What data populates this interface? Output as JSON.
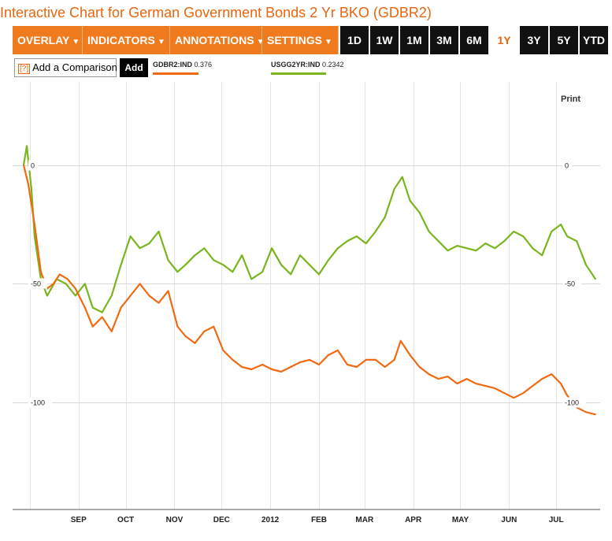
{
  "page": {
    "title": "Interactive Chart for German Government Bonds 2 Yr BKO (GDBR2)"
  },
  "toolbar": {
    "menus": [
      "OVERLAY",
      "INDICATORS",
      "ANNOTATIONS",
      "SETTINGS"
    ],
    "ranges": [
      "1D",
      "1W",
      "1M",
      "3M",
      "6M",
      "1Y",
      "3Y",
      "5Y",
      "YTD"
    ],
    "active_range": "1Y"
  },
  "compare": {
    "help": "[?]",
    "label": "Add a Comparison",
    "add_label": "Add"
  },
  "legend": [
    {
      "ticker": "GDBR2:IND",
      "value": "0.376",
      "color": "#f06a12"
    },
    {
      "ticker": "USGG2YR:IND",
      "value": "0.2342",
      "color": "#7ab51d"
    }
  ],
  "print_label": "Print",
  "chart_data": {
    "type": "line",
    "ylim": [
      -145,
      35
    ],
    "yticks": [
      "0",
      "-50",
      "-100"
    ],
    "xticks": [
      "SEP",
      "OCT",
      "NOV",
      "DEC",
      "2012",
      "FEB",
      "MAR",
      "APR",
      "MAY",
      "JUN",
      "JUL"
    ],
    "grid": true,
    "series": [
      {
        "name": "GDBR2:IND",
        "color": "#f06a12",
        "x": [
          "2011-07-28",
          "2011-07-31",
          "2011-08-04",
          "2011-08-08",
          "2011-08-12",
          "2011-08-16",
          "2011-08-20",
          "2011-08-25",
          "2011-08-30",
          "2011-09-05",
          "2011-09-10",
          "2011-09-16",
          "2011-09-22",
          "2011-09-28",
          "2011-10-04",
          "2011-10-10",
          "2011-10-16",
          "2011-10-22",
          "2011-10-28",
          "2011-11-03",
          "2011-11-08",
          "2011-11-14",
          "2011-11-20",
          "2011-11-26",
          "2011-12-02",
          "2011-12-08",
          "2011-12-14",
          "2011-12-20",
          "2011-12-27",
          "2012-01-02",
          "2012-01-08",
          "2012-01-14",
          "2012-01-20",
          "2012-01-26",
          "2012-02-01",
          "2012-02-07",
          "2012-02-13",
          "2012-02-19",
          "2012-02-25",
          "2012-03-02",
          "2012-03-08",
          "2012-03-14",
          "2012-03-20",
          "2012-03-24",
          "2012-03-30",
          "2012-04-05",
          "2012-04-11",
          "2012-04-17",
          "2012-04-23",
          "2012-04-29",
          "2012-05-05",
          "2012-05-11",
          "2012-05-17",
          "2012-05-23",
          "2012-05-29",
          "2012-06-04",
          "2012-06-10",
          "2012-06-16",
          "2012-06-22",
          "2012-06-28",
          "2012-07-04",
          "2012-07-08",
          "2012-07-14",
          "2012-07-20",
          "2012-07-26"
        ],
        "values": [
          0,
          -8,
          -25,
          -45,
          -52,
          -50,
          -46,
          -48,
          -52,
          -60,
          -68,
          -64,
          -70,
          -60,
          -55,
          -50,
          -55,
          -58,
          -53,
          -68,
          -72,
          -75,
          -70,
          -68,
          -78,
          -82,
          -85,
          -86,
          -84,
          -86,
          -87,
          -85,
          -83,
          -82,
          -84,
          -80,
          -78,
          -84,
          -85,
          -82,
          -82,
          -85,
          -82,
          -74,
          -80,
          -85,
          -88,
          -90,
          -89,
          -92,
          -90,
          -92,
          -93,
          -94,
          -96,
          -98,
          -96,
          -93,
          -90,
          -88,
          -92,
          -97,
          -102,
          -104,
          -105
        ]
      },
      {
        "name": "USGG2YR:IND",
        "color": "#7ab51d",
        "x": [
          "2011-07-28",
          "2011-07-30",
          "2011-08-02",
          "2011-08-04",
          "2011-08-08",
          "2011-08-12",
          "2011-08-18",
          "2011-08-24",
          "2011-08-30",
          "2011-09-05",
          "2011-09-10",
          "2011-09-16",
          "2011-09-22",
          "2011-09-28",
          "2011-10-04",
          "2011-10-10",
          "2011-10-16",
          "2011-10-22",
          "2011-10-28",
          "2011-11-03",
          "2011-11-08",
          "2011-11-14",
          "2011-11-20",
          "2011-11-26",
          "2011-12-02",
          "2011-12-08",
          "2011-12-14",
          "2011-12-20",
          "2011-12-27",
          "2012-01-02",
          "2012-01-08",
          "2012-01-14",
          "2012-01-20",
          "2012-01-26",
          "2012-02-01",
          "2012-02-07",
          "2012-02-13",
          "2012-02-19",
          "2012-02-25",
          "2012-03-02",
          "2012-03-08",
          "2012-03-14",
          "2012-03-20",
          "2012-03-25",
          "2012-03-30",
          "2012-04-05",
          "2012-04-11",
          "2012-04-17",
          "2012-04-23",
          "2012-04-29",
          "2012-05-05",
          "2012-05-11",
          "2012-05-17",
          "2012-05-23",
          "2012-05-29",
          "2012-06-04",
          "2012-06-10",
          "2012-06-16",
          "2012-06-22",
          "2012-06-28",
          "2012-07-04",
          "2012-07-08",
          "2012-07-14",
          "2012-07-20",
          "2012-07-26"
        ],
        "values": [
          0,
          8,
          -10,
          -30,
          -48,
          -55,
          -48,
          -50,
          -55,
          -50,
          -60,
          -62,
          -55,
          -42,
          -30,
          -35,
          -33,
          -28,
          -40,
          -45,
          -42,
          -38,
          -35,
          -40,
          -42,
          -45,
          -38,
          -48,
          -45,
          -35,
          -42,
          -46,
          -38,
          -42,
          -46,
          -40,
          -35,
          -32,
          -30,
          -33,
          -28,
          -22,
          -10,
          -5,
          -15,
          -20,
          -28,
          -32,
          -36,
          -34,
          -35,
          -36,
          -33,
          -35,
          -32,
          -28,
          -30,
          -35,
          -38,
          -28,
          -25,
          -30,
          -32,
          -42,
          -48
        ]
      }
    ]
  }
}
